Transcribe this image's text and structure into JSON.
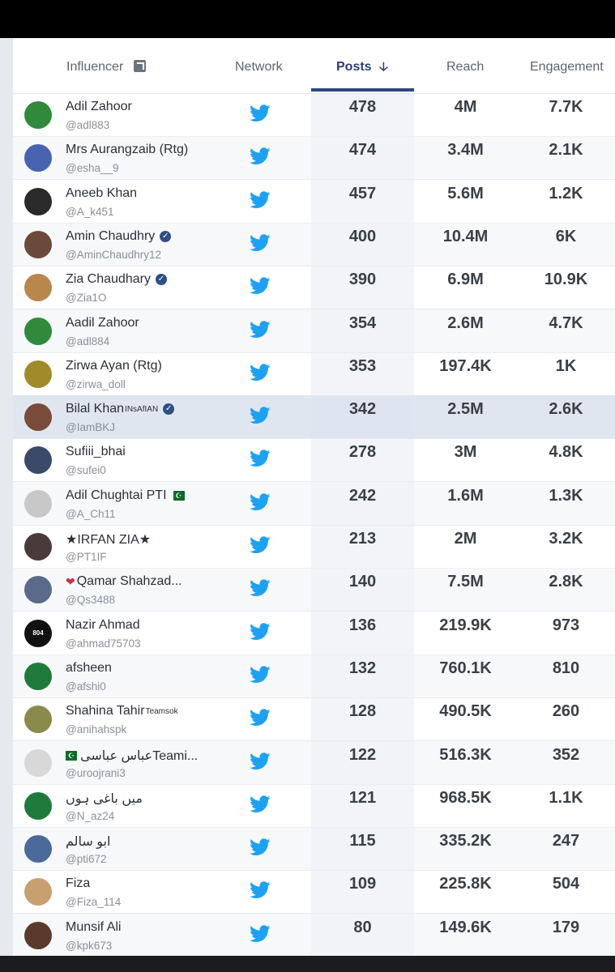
{
  "header": {
    "influencer": "Influencer",
    "network": "Network",
    "posts": "Posts",
    "posts_arrow": "🡣",
    "reach": "Reach",
    "engagement": "Engagement"
  },
  "rows": [
    {
      "name": "Adil Zahoor",
      "handle": "@adl883",
      "posts": "478",
      "reach": "4M",
      "engagement": "7.7K",
      "avatar_color": "#2f8a3c"
    },
    {
      "name": "Mrs Aurangzaib (Rtg)",
      "handle": "@esha__9",
      "posts": "474",
      "reach": "3.4M",
      "engagement": "2.1K",
      "avatar_color": "#4863b0"
    },
    {
      "name": "Aneeb Khan",
      "handle": "@A_k451",
      "posts": "457",
      "reach": "5.6M",
      "engagement": "1.2K",
      "avatar_color": "#2a2a2a"
    },
    {
      "name": "Amin Chaudhry",
      "handle": "@AminChaudhry12",
      "posts": "400",
      "reach": "10.4M",
      "engagement": "6K",
      "avatar_color": "#6b4a3a",
      "verified": "✓"
    },
    {
      "name": "Zia Chaudhary",
      "handle": "@Zia1O",
      "posts": "390",
      "reach": "6.9M",
      "engagement": "10.9K",
      "avatar_color": "#b8884a",
      "verified": "✓"
    },
    {
      "name": "Aadil Zahoor",
      "handle": "@adl884",
      "posts": "354",
      "reach": "2.6M",
      "engagement": "4.7K",
      "avatar_color": "#2f8a3c"
    },
    {
      "name": "Zirwa Ayan (Rtg)",
      "handle": "@zirwa_doll",
      "posts": "353",
      "reach": "197.4K",
      "engagement": "1K",
      "avatar_color": "#a08a2a"
    },
    {
      "name": "Bilal Khan",
      "name_sup": "INsAfIAN",
      "handle": "@IamBKJ",
      "posts": "342",
      "reach": "2.5M",
      "engagement": "2.6K",
      "avatar_color": "#7a4a3a",
      "verified": "✓"
    },
    {
      "name": "Sufiii_bhai",
      "handle": "@sufei0",
      "posts": "278",
      "reach": "3M",
      "engagement": "4.8K",
      "avatar_color": "#3a4a6a"
    },
    {
      "name": "Adil Chughtai PTI",
      "handle": "@A_Ch11",
      "posts": "242",
      "reach": "1.6M",
      "engagement": "1.3K",
      "avatar_color": "#c8c8c8",
      "flag": "☪"
    },
    {
      "name": "★IRFAN ZIA★",
      "handle": "@PT1IF",
      "posts": "213",
      "reach": "2M",
      "engagement": "3.2K",
      "avatar_color": "#4a3a3a"
    },
    {
      "name": "Qamar Shahzad...",
      "heart": "❤",
      "handle": "@Qs3488",
      "posts": "140",
      "reach": "7.5M",
      "engagement": "2.8K",
      "avatar_color": "#5a6a8a"
    },
    {
      "name": "Nazir Ahmad",
      "handle": "@ahmad75703",
      "posts": "136",
      "reach": "219.9K",
      "engagement": "973",
      "avatar_color": "#111111",
      "avatar_text": "804"
    },
    {
      "name": "afsheen",
      "handle": "@afshi0",
      "posts": "132",
      "reach": "760.1K",
      "engagement": "810",
      "avatar_color": "#1e7a3a"
    },
    {
      "name": "Shahina Tahir",
      "name_sup": "Teamsok",
      "handle": "@anihahspk",
      "posts": "128",
      "reach": "490.5K",
      "engagement": "260",
      "avatar_color": "#8a8a4a"
    },
    {
      "name": "عباس عباسیTeami...",
      "flag_lead": "☪",
      "handle": "@uroojrani3",
      "posts": "122",
      "reach": "516.3K",
      "engagement": "352",
      "avatar_color": "#d8d8d8"
    },
    {
      "name": "میں باغی ہوں",
      "handle": "@N_az24",
      "posts": "121",
      "reach": "968.5K",
      "engagement": "1.1K",
      "avatar_color": "#1e7a3a"
    },
    {
      "name": "ابو سالم",
      "handle": "@pti672",
      "posts": "115",
      "reach": "335.2K",
      "engagement": "247",
      "avatar_color": "#4a6a9a"
    },
    {
      "name": "Fiza",
      "handle": "@Fiza_114",
      "posts": "109",
      "reach": "225.8K",
      "engagement": "504",
      "avatar_color": "#c8a070"
    },
    {
      "name": "Munsif Ali",
      "handle": "@kpk673",
      "posts": "80",
      "reach": "149.6K",
      "engagement": "179",
      "avatar_color": "#5a3a2a"
    }
  ]
}
